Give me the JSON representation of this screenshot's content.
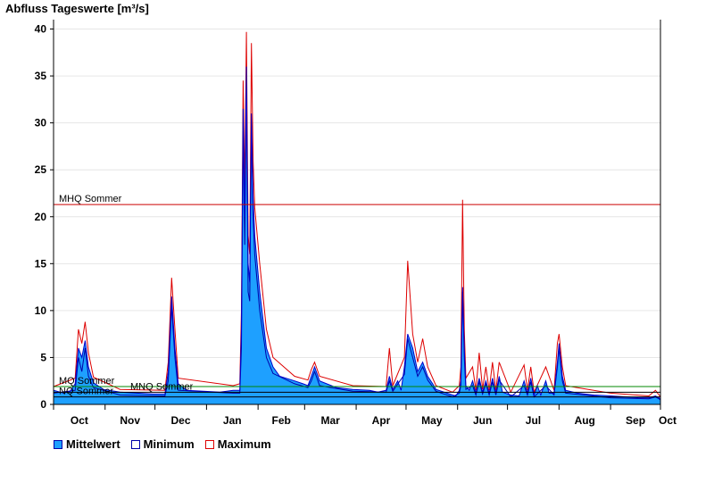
{
  "chart_data": {
    "type": "area",
    "title": "Abfluss Tageswerte [m³/s]",
    "xlabel": "",
    "ylabel": "",
    "ylim": [
      0,
      41
    ],
    "yticks": [
      0,
      5,
      10,
      15,
      20,
      25,
      30,
      35,
      40
    ],
    "grid": true,
    "legend_position": "bottom-left",
    "months": [
      "Oct",
      "Nov",
      "Dec",
      "Jan",
      "Feb",
      "Mar",
      "Apr",
      "May",
      "Jun",
      "Jul",
      "Aug",
      "Sep",
      "Oct"
    ],
    "day_index_axis": [
      0,
      365
    ],
    "reference_lines": [
      {
        "name": "MHQ Sommer",
        "value": 21.3,
        "color": "#cc0000"
      },
      {
        "name": "MQ Sommer",
        "value": 1.9,
        "color": "#008800"
      },
      {
        "name": "MNQ Sommer",
        "value": 1.3,
        "color": "#000000"
      },
      {
        "name": "NQ Sommer",
        "value": 0.8,
        "color": "#000000"
      }
    ],
    "series": [
      {
        "name": "Mittelwert",
        "color": "#1ea0ff",
        "stroke": "#0000cc",
        "points": [
          [
            0,
            1.5
          ],
          [
            6,
            1.2
          ],
          [
            10,
            1.4
          ],
          [
            13,
            2.2
          ],
          [
            15,
            6.0
          ],
          [
            17,
            5.0
          ],
          [
            19,
            6.8
          ],
          [
            21,
            4.0
          ],
          [
            24,
            2.3
          ],
          [
            30,
            1.6
          ],
          [
            40,
            1.3
          ],
          [
            50,
            1.2
          ],
          [
            60,
            1.1
          ],
          [
            67,
            1.1
          ],
          [
            69,
            3.5
          ],
          [
            71,
            11.5
          ],
          [
            73,
            6.0
          ],
          [
            75,
            2.2
          ],
          [
            80,
            1.5
          ],
          [
            90,
            1.4
          ],
          [
            100,
            1.3
          ],
          [
            108,
            1.5
          ],
          [
            112,
            1.5
          ],
          [
            113,
            8.0
          ],
          [
            114,
            31.5
          ],
          [
            115,
            20.0
          ],
          [
            116,
            36.0
          ],
          [
            117,
            15.0
          ],
          [
            118,
            13.0
          ],
          [
            119,
            31.0
          ],
          [
            120,
            22.0
          ],
          [
            121,
            18.0
          ],
          [
            124,
            12.0
          ],
          [
            128,
            6.0
          ],
          [
            132,
            4.0
          ],
          [
            136,
            3.0
          ],
          [
            145,
            2.5
          ],
          [
            150,
            2.2
          ],
          [
            153,
            2.0
          ],
          [
            155,
            3.0
          ],
          [
            157,
            4.0
          ],
          [
            160,
            2.5
          ],
          [
            170,
            1.8
          ],
          [
            180,
            1.6
          ],
          [
            190,
            1.5
          ],
          [
            195,
            1.3
          ],
          [
            200,
            1.5
          ],
          [
            202,
            3.0
          ],
          [
            204,
            1.6
          ],
          [
            207,
            2.5
          ],
          [
            209,
            1.5
          ],
          [
            211,
            4.0
          ],
          [
            213,
            7.5
          ],
          [
            216,
            6.0
          ],
          [
            219,
            3.5
          ],
          [
            222,
            4.5
          ],
          [
            225,
            3.0
          ],
          [
            228,
            2.2
          ],
          [
            230,
            1.6
          ],
          [
            235,
            1.3
          ],
          [
            240,
            1.0
          ],
          [
            242,
            0.9
          ],
          [
            244,
            1.5
          ],
          [
            245,
            2.5
          ],
          [
            246,
            12.5
          ],
          [
            247,
            6.0
          ],
          [
            248,
            2.0
          ],
          [
            250,
            1.5
          ],
          [
            252,
            2.5
          ],
          [
            254,
            1.2
          ],
          [
            256,
            2.8
          ],
          [
            258,
            1.3
          ],
          [
            260,
            2.5
          ],
          [
            262,
            1.2
          ],
          [
            264,
            2.8
          ],
          [
            266,
            1.2
          ],
          [
            268,
            3.0
          ],
          [
            270,
            1.3
          ],
          [
            275,
            1.0
          ],
          [
            280,
            0.9
          ],
          [
            283,
            2.5
          ],
          [
            285,
            1.2
          ],
          [
            287,
            2.8
          ],
          [
            289,
            1.0
          ],
          [
            291,
            2.0
          ],
          [
            293,
            1.0
          ],
          [
            296,
            2.5
          ],
          [
            298,
            1.2
          ],
          [
            301,
            1.2
          ],
          [
            303,
            4.5
          ],
          [
            304,
            6.5
          ],
          [
            306,
            3.0
          ],
          [
            308,
            1.5
          ],
          [
            315,
            1.2
          ],
          [
            325,
            1.0
          ],
          [
            335,
            0.9
          ],
          [
            345,
            0.8
          ],
          [
            352,
            0.7
          ],
          [
            358,
            0.7
          ],
          [
            362,
            0.9
          ],
          [
            365,
            0.6
          ]
        ]
      },
      {
        "name": "Minimum",
        "color": "#0000aa",
        "points": [
          [
            0,
            1.2
          ],
          [
            13,
            1.5
          ],
          [
            15,
            5.0
          ],
          [
            17,
            3.5
          ],
          [
            19,
            6.0
          ],
          [
            21,
            3.0
          ],
          [
            24,
            1.8
          ],
          [
            40,
            1.0
          ],
          [
            67,
            0.9
          ],
          [
            69,
            2.5
          ],
          [
            71,
            10.5
          ],
          [
            73,
            5.0
          ],
          [
            75,
            1.5
          ],
          [
            108,
            1.2
          ],
          [
            112,
            1.2
          ],
          [
            113,
            6.0
          ],
          [
            114,
            30.0
          ],
          [
            115,
            17.0
          ],
          [
            116,
            34.0
          ],
          [
            117,
            12.0
          ],
          [
            118,
            11.0
          ],
          [
            119,
            29.5
          ],
          [
            120,
            20.0
          ],
          [
            121,
            16.0
          ],
          [
            124,
            10.0
          ],
          [
            128,
            5.0
          ],
          [
            132,
            3.3
          ],
          [
            145,
            2.2
          ],
          [
            153,
            1.8
          ],
          [
            155,
            2.5
          ],
          [
            157,
            3.5
          ],
          [
            160,
            2.0
          ],
          [
            180,
            1.4
          ],
          [
            200,
            1.3
          ],
          [
            202,
            2.5
          ],
          [
            204,
            1.4
          ],
          [
            211,
            3.2
          ],
          [
            213,
            7.0
          ],
          [
            216,
            5.0
          ],
          [
            219,
            3.0
          ],
          [
            222,
            4.0
          ],
          [
            225,
            2.6
          ],
          [
            230,
            1.4
          ],
          [
            240,
            0.8
          ],
          [
            244,
            1.2
          ],
          [
            245,
            2.0
          ],
          [
            246,
            12.0
          ],
          [
            247,
            5.0
          ],
          [
            248,
            1.6
          ],
          [
            252,
            2.0
          ],
          [
            254,
            1.0
          ],
          [
            256,
            2.4
          ],
          [
            258,
            1.1
          ],
          [
            260,
            2.2
          ],
          [
            262,
            1.0
          ],
          [
            264,
            2.4
          ],
          [
            266,
            1.0
          ],
          [
            268,
            2.6
          ],
          [
            275,
            0.8
          ],
          [
            283,
            2.0
          ],
          [
            285,
            1.0
          ],
          [
            287,
            2.4
          ],
          [
            289,
            0.8
          ],
          [
            296,
            2.0
          ],
          [
            301,
            1.0
          ],
          [
            303,
            4.0
          ],
          [
            304,
            6.0
          ],
          [
            306,
            2.5
          ],
          [
            308,
            1.2
          ],
          [
            335,
            0.7
          ],
          [
            358,
            0.6
          ],
          [
            362,
            0.8
          ],
          [
            365,
            0.5
          ]
        ]
      },
      {
        "name": "Maximum",
        "color": "#dd0000",
        "points": [
          [
            0,
            1.9
          ],
          [
            13,
            2.8
          ],
          [
            15,
            8.0
          ],
          [
            17,
            6.5
          ],
          [
            19,
            8.8
          ],
          [
            21,
            5.5
          ],
          [
            24,
            2.9
          ],
          [
            40,
            1.6
          ],
          [
            67,
            1.5
          ],
          [
            69,
            4.5
          ],
          [
            71,
            13.5
          ],
          [
            73,
            8.0
          ],
          [
            75,
            2.8
          ],
          [
            108,
            2.0
          ],
          [
            112,
            2.2
          ],
          [
            113,
            10.0
          ],
          [
            114,
            34.5
          ],
          [
            115,
            23.0
          ],
          [
            116,
            39.7
          ],
          [
            117,
            18.0
          ],
          [
            118,
            16.0
          ],
          [
            119,
            38.5
          ],
          [
            120,
            26.0
          ],
          [
            121,
            21.0
          ],
          [
            124,
            15.0
          ],
          [
            128,
            8.0
          ],
          [
            132,
            5.0
          ],
          [
            145,
            3.0
          ],
          [
            153,
            2.6
          ],
          [
            155,
            3.7
          ],
          [
            157,
            4.5
          ],
          [
            160,
            3.0
          ],
          [
            180,
            2.0
          ],
          [
            200,
            1.9
          ],
          [
            202,
            6.0
          ],
          [
            204,
            2.0
          ],
          [
            211,
            5.0
          ],
          [
            213,
            15.3
          ],
          [
            216,
            7.5
          ],
          [
            219,
            4.5
          ],
          [
            222,
            7.0
          ],
          [
            225,
            4.0
          ],
          [
            230,
            2.0
          ],
          [
            240,
            1.3
          ],
          [
            244,
            2.0
          ],
          [
            245,
            4.0
          ],
          [
            246,
            21.8
          ],
          [
            247,
            8.0
          ],
          [
            248,
            2.8
          ],
          [
            252,
            4.0
          ],
          [
            254,
            1.5
          ],
          [
            256,
            5.5
          ],
          [
            258,
            1.6
          ],
          [
            260,
            4.0
          ],
          [
            262,
            1.5
          ],
          [
            264,
            4.5
          ],
          [
            266,
            1.5
          ],
          [
            268,
            4.5
          ],
          [
            275,
            1.3
          ],
          [
            283,
            4.2
          ],
          [
            285,
            1.5
          ],
          [
            287,
            4.0
          ],
          [
            289,
            1.3
          ],
          [
            296,
            4.0
          ],
          [
            301,
            1.5
          ],
          [
            303,
            6.5
          ],
          [
            304,
            7.5
          ],
          [
            306,
            4.0
          ],
          [
            308,
            2.0
          ],
          [
            335,
            1.2
          ],
          [
            358,
            0.9
          ],
          [
            362,
            1.5
          ],
          [
            365,
            0.8
          ]
        ]
      }
    ]
  }
}
